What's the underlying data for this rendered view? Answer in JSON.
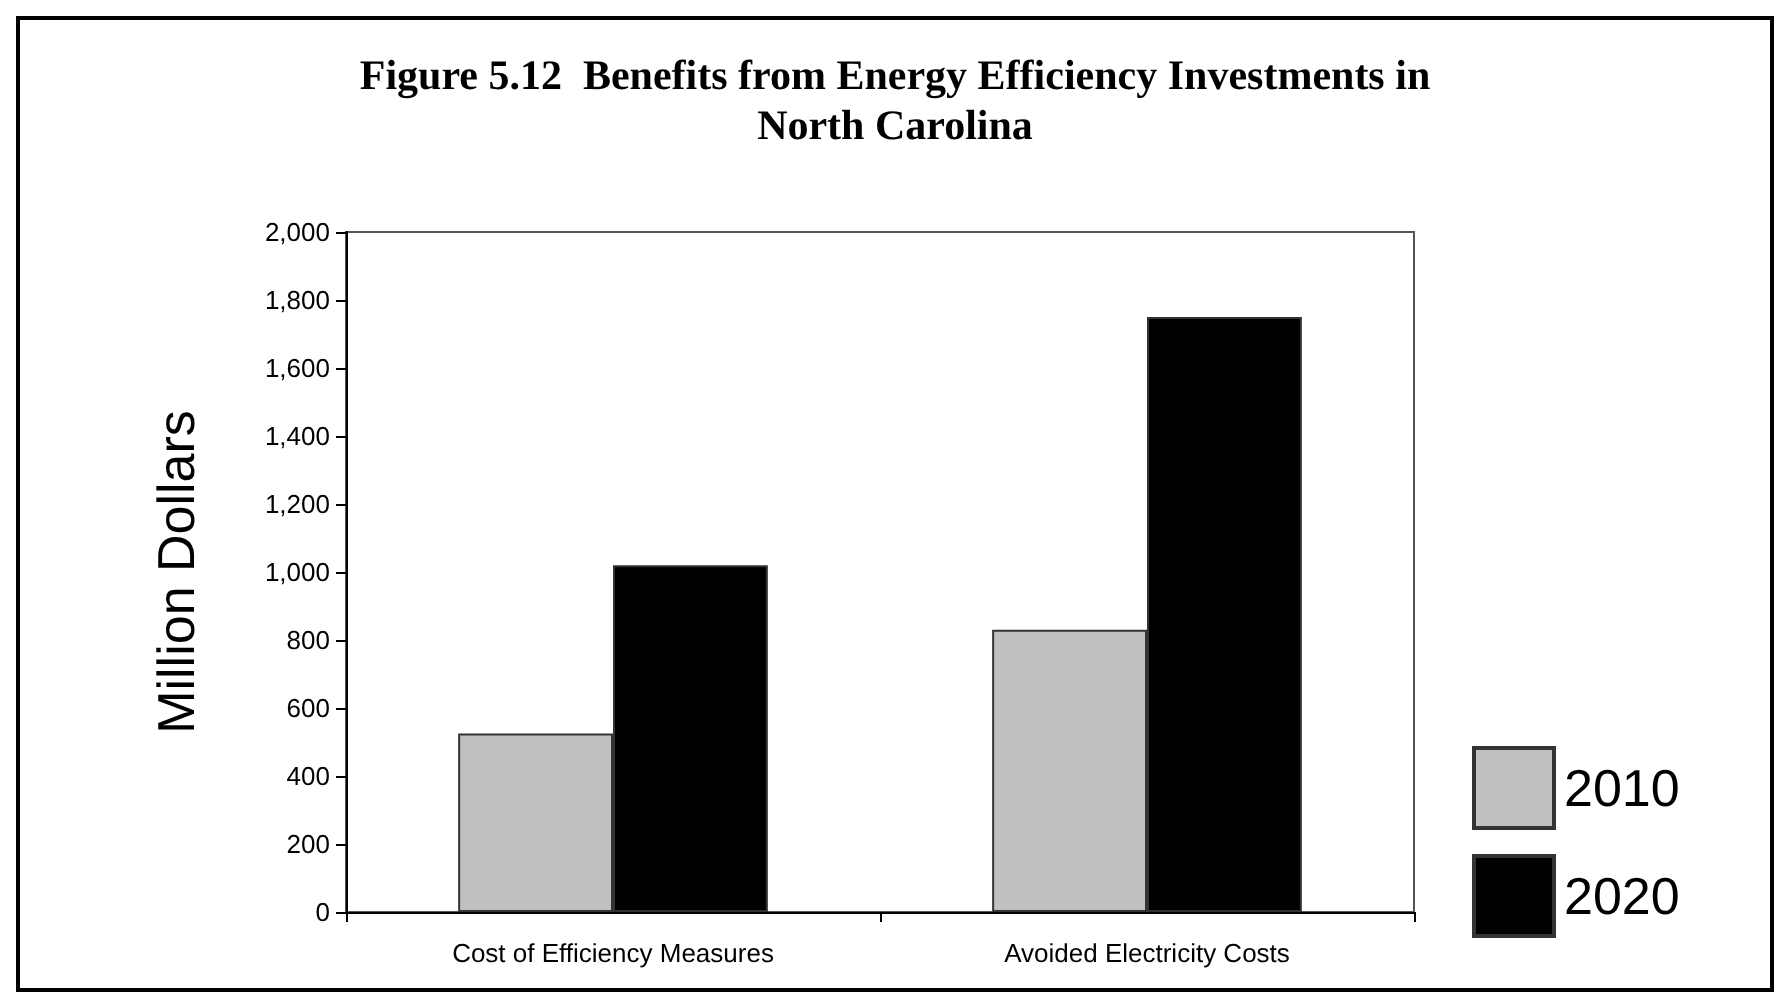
{
  "chart_data": {
    "type": "bar",
    "title": "Figure 5.12  Benefits from Energy Efficiency Investments in\nNorth Carolina",
    "ylabel": "Million Dollars",
    "categories": [
      "Cost of Efficiency Measures",
      "Avoided Electricity Costs"
    ],
    "series": [
      {
        "name": "2010",
        "color": "#c0c0c0",
        "values": [
          525,
          830
        ]
      },
      {
        "name": "2020",
        "color": "#000000",
        "values": [
          1020,
          1750
        ]
      }
    ],
    "ylim": [
      0,
      2000
    ],
    "yticks": [
      {
        "value": 0,
        "label": "0"
      },
      {
        "value": 200,
        "label": "200"
      },
      {
        "value": 400,
        "label": "400"
      },
      {
        "value": 600,
        "label": "600"
      },
      {
        "value": 800,
        "label": "800"
      },
      {
        "value": 1000,
        "label": "1,000"
      },
      {
        "value": 1200,
        "label": "1,200"
      },
      {
        "value": 1400,
        "label": "1,400"
      },
      {
        "value": 1600,
        "label": "1,600"
      },
      {
        "value": 1800,
        "label": "1,800"
      },
      {
        "value": 2000,
        "label": "2,000"
      }
    ],
    "grid": false,
    "legend": "bottom right"
  }
}
